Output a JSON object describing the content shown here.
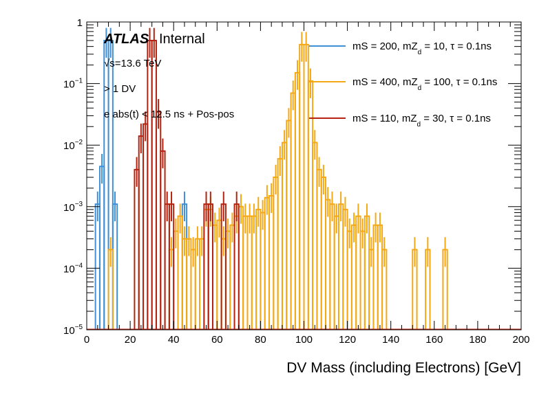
{
  "chart_data": {
    "type": "histogram-step",
    "xlabel": "DV Mass (including Electrons) [GeV]",
    "ylabel": "",
    "xlim": [
      0,
      200
    ],
    "ylim": [
      1e-05,
      1
    ],
    "yscale": "log",
    "x_ticks": [
      "0",
      "20",
      "40",
      "60",
      "80",
      "100",
      "120",
      "140",
      "160",
      "180",
      "200"
    ],
    "y_ticks": [
      {
        "base": "1",
        "exp": ""
      },
      {
        "base": "10",
        "exp": "−1"
      },
      {
        "base": "10",
        "exp": "−2"
      },
      {
        "base": "10",
        "exp": "−3"
      },
      {
        "base": "10",
        "exp": "−4"
      },
      {
        "base": "10",
        "exp": "−5"
      }
    ],
    "annotations": {
      "atlas": "ATLAS",
      "internal": "Internal",
      "energy": "√s=13.6 TeV",
      "selection1": "> 1 DV",
      "selection2": "e abs(t) < 12.5 ns + Pos-pos"
    },
    "legend_position": "top-right",
    "series": [
      {
        "name": "mS = 200, mZd = 10, τ = 0.1ns",
        "legend_main": "mS = 200, mZ",
        "legend_sub": "d",
        "legend_rest": " = 10, τ = 0.1ns",
        "color": "#3f8fd6",
        "bin_width": 2,
        "bins": [
          [
            4,
            0.0011
          ],
          [
            6,
            0.0045
          ],
          [
            8,
            0.5
          ],
          [
            10,
            0.5
          ],
          [
            12,
            0.0011
          ],
          [
            44,
            0.0011
          ]
        ]
      },
      {
        "name": "mS = 400, mZd = 100, τ = 0.1ns",
        "legend_main": "mS = 400, mZ",
        "legend_sub": "d",
        "legend_rest": " = 100, τ = 0.1ns",
        "color": "#f5a816",
        "bin_width": 2,
        "bins": [
          [
            10,
            0.0002
          ],
          [
            38,
            0.0002
          ],
          [
            40,
            0.0004
          ],
          [
            42,
            0.0007
          ],
          [
            44,
            0.0003
          ],
          [
            46,
            0.0003
          ],
          [
            48,
            0.0002
          ],
          [
            50,
            0.0003
          ],
          [
            52,
            0.0003
          ],
          [
            54,
            0.0009
          ],
          [
            56,
            0.0009
          ],
          [
            58,
            0.0005
          ],
          [
            60,
            0.0006
          ],
          [
            62,
            0.0003
          ],
          [
            64,
            0.0004
          ],
          [
            66,
            0.0005
          ],
          [
            68,
            0.0007
          ],
          [
            70,
            0.001
          ],
          [
            72,
            0.0007
          ],
          [
            74,
            0.0007
          ],
          [
            76,
            0.0007
          ],
          [
            78,
            0.0009
          ],
          [
            80,
            0.0008
          ],
          [
            82,
            0.0014
          ],
          [
            84,
            0.0015
          ],
          [
            86,
            0.003
          ],
          [
            88,
            0.006
          ],
          [
            90,
            0.011
          ],
          [
            92,
            0.025
          ],
          [
            94,
            0.07
          ],
          [
            96,
            0.15
          ],
          [
            98,
            0.43
          ],
          [
            100,
            0.43
          ],
          [
            102,
            0.11
          ],
          [
            104,
            0.011
          ],
          [
            106,
            0.004
          ],
          [
            108,
            0.003
          ],
          [
            110,
            0.0013
          ],
          [
            112,
            0.0011
          ],
          [
            114,
            0.0007
          ],
          [
            116,
            0.0011
          ],
          [
            118,
            0.0009
          ],
          [
            120,
            0.0004
          ],
          [
            122,
            0.0005
          ],
          [
            124,
            0.0007
          ],
          [
            126,
            0.0004
          ],
          [
            128,
            0.0007
          ],
          [
            130,
            0.0002
          ],
          [
            132,
            0.0005
          ],
          [
            134,
            0.0005
          ],
          [
            136,
            0.0002
          ],
          [
            150,
            0.0002
          ],
          [
            156,
            0.0002
          ],
          [
            164,
            0.0002
          ]
        ]
      },
      {
        "name": "mS = 110, mZd = 30, τ = 0.1ns",
        "legend_main": "mS = 110, mZ",
        "legend_sub": "d",
        "legend_rest": " = 30, τ = 0.1ns",
        "color": "#b5220f",
        "bin_width": 2,
        "bins": [
          [
            22,
            0.004
          ],
          [
            24,
            0.014
          ],
          [
            26,
            0.022
          ],
          [
            28,
            0.5
          ],
          [
            30,
            0.5
          ],
          [
            32,
            0.035
          ],
          [
            34,
            0.008
          ],
          [
            36,
            0.0011
          ],
          [
            38,
            0.0011
          ],
          [
            54,
            0.0011
          ],
          [
            56,
            0.0011
          ],
          [
            62,
            0.0011
          ],
          [
            68,
            0.0011
          ]
        ]
      }
    ]
  }
}
